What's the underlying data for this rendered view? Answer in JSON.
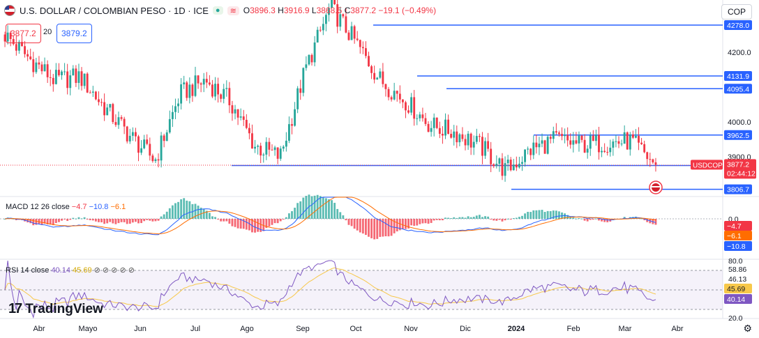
{
  "header": {
    "symbol_title": "U.S. DOLLAR / COLOMBIAN PESO · 1D · ICE",
    "open_label": "O",
    "open": "3896.3",
    "high_label": "H",
    "high": "3916.9",
    "low_label": "L",
    "low": "3868.5",
    "close_label": "C",
    "close": "3877.2",
    "change": "−19.1 (−0.49%)",
    "bid": "3877.2",
    "spread": "20",
    "ask": "3879.2",
    "currency": "COP"
  },
  "macd": {
    "label": "MACD 12 26 close",
    "hist": "−4.7",
    "macd": "−10.8",
    "signal": "−6.1"
  },
  "rsi": {
    "label": "RSI 14 close",
    "rsi": "40.14",
    "ma": "45.69",
    "icons": "⊘ ⊘ ⊘ ⊘ ⊘"
  },
  "brand": {
    "logo_text": "TradingView"
  },
  "price_tag": {
    "symbol": "USDCOP",
    "price": "3877.2",
    "countdown": "02:44:12"
  },
  "colors": {
    "up": "#26a69a",
    "down": "#f23645",
    "level": "#2962ff",
    "macd": "#2962ff",
    "signal": "#ff6d00",
    "rsi": "#7e57c2",
    "rsi_ma": "#f7c84a"
  },
  "chart_data": {
    "type": "candlestick",
    "title": "U.S. DOLLAR / COLOMBIAN PESO · 1D · ICE",
    "x_ticks": [
      "Abr",
      "Mayo",
      "Jun",
      "Jul",
      "Ago",
      "Sep",
      "Oct",
      "Nov",
      "Dic",
      "2024",
      "Feb",
      "Mar",
      "Abr"
    ],
    "y_ticks": [
      4200.0,
      4000.0,
      3900.0
    ],
    "price_series_approx": [
      {
        "x": "Jun",
        "close": 4250
      },
      {
        "x": "Jun",
        "close": 4180
      },
      {
        "x": "Jun",
        "close": 4120
      },
      {
        "x": "Jul",
        "close": 4130
      },
      {
        "x": "Jul",
        "close": 4040
      },
      {
        "x": "Jul",
        "close": 3960
      },
      {
        "x": "Ago",
        "close": 3890
      },
      {
        "x": "Ago",
        "close": 4080
      },
      {
        "x": "Ago",
        "close": 4120
      },
      {
        "x": "Sep",
        "close": 4060
      },
      {
        "x": "Sep",
        "close": 3930
      },
      {
        "x": "Sep",
        "close": 3900
      },
      {
        "x": "Oct",
        "close": 4150
      },
      {
        "x": "Oct",
        "close": 4330
      },
      {
        "x": "Oct",
        "close": 4230
      },
      {
        "x": "Nov",
        "close": 4120
      },
      {
        "x": "Nov",
        "close": 4060
      },
      {
        "x": "Nov",
        "close": 3990
      },
      {
        "x": "Dic",
        "close": 3970
      },
      {
        "x": "Dic",
        "close": 3930
      },
      {
        "x": "Dic",
        "close": 3860
      },
      {
        "x": "2024",
        "close": 3920
      },
      {
        "x": "2024",
        "close": 3950
      },
      {
        "x": "Feb",
        "close": 3935
      },
      {
        "x": "Feb",
        "close": 3940
      },
      {
        "x": "Mar",
        "close": 3945
      },
      {
        "x": "Mar",
        "close": 3877.2
      }
    ],
    "horizontal_levels": [
      4278.0,
      4131.9,
      4095.4,
      3962.5,
      3875.1,
      3806.7
    ],
    "last_price": 3877.2,
    "macd": {
      "hist": -4.7,
      "macd": -10.8,
      "signal": -6.1,
      "zero_label": "0.0"
    },
    "rsi": {
      "value": 40.14,
      "ma": 45.69,
      "levels": [
        80.0,
        58.86,
        46.13,
        20.0
      ]
    }
  }
}
